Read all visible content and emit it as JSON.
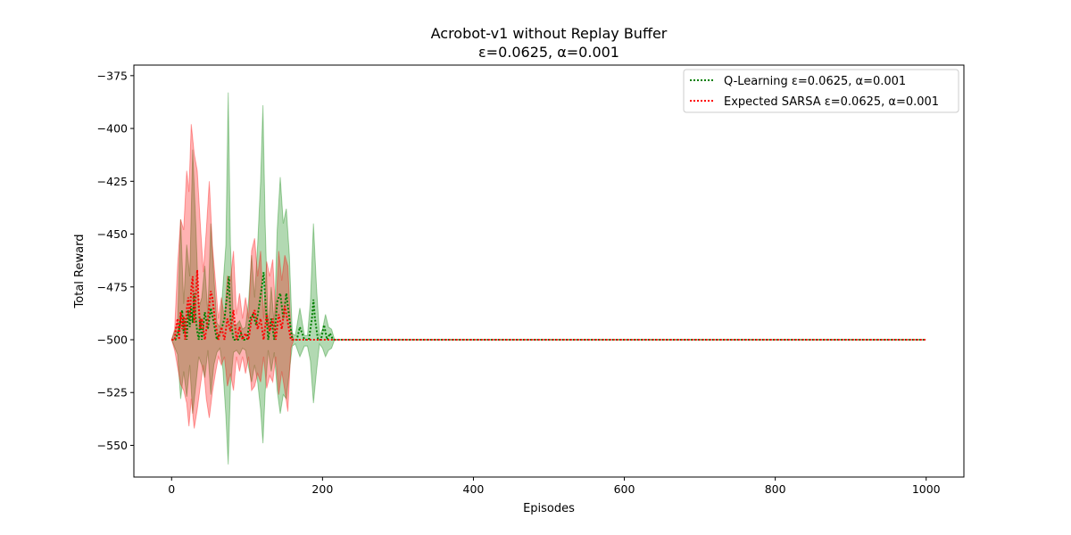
{
  "chart_data": {
    "type": "line",
    "title": "Acrobot-v1 without Replay Buffer",
    "subtitle": "ε=0.0625, α=0.001",
    "xlabel": "Episodes",
    "ylabel": "Total Reward",
    "xlim": [
      -50,
      1050
    ],
    "ylim": [
      -565,
      -370
    ],
    "xticks": [
      0,
      200,
      400,
      600,
      800,
      1000
    ],
    "yticks": [
      -375,
      -400,
      -425,
      -450,
      -475,
      -500,
      -525,
      -550
    ],
    "xtick_labels": [
      "0",
      "200",
      "400",
      "600",
      "800",
      "1000"
    ],
    "ytick_labels": [
      "−375",
      "−400",
      "−425",
      "−450",
      "−475",
      "−500",
      "−525",
      "−550"
    ],
    "grid": false,
    "legend_position": "top-right",
    "series": [
      {
        "name": "Q-Learning ε=0.0625, α=0.001",
        "color": "#008000",
        "style": "dotted",
        "mean_points": [
          [
            0,
            -500
          ],
          [
            5,
            -500
          ],
          [
            10,
            -495
          ],
          [
            12,
            -490
          ],
          [
            14,
            -486
          ],
          [
            16,
            -497
          ],
          [
            18,
            -490
          ],
          [
            20,
            -500
          ],
          [
            22,
            -486
          ],
          [
            24,
            -494
          ],
          [
            26,
            -484
          ],
          [
            28,
            -492
          ],
          [
            30,
            -478
          ],
          [
            32,
            -490
          ],
          [
            34,
            -496
          ],
          [
            36,
            -500
          ],
          [
            38,
            -490
          ],
          [
            40,
            -500
          ],
          [
            44,
            -487
          ],
          [
            48,
            -495
          ],
          [
            52,
            -485
          ],
          [
            56,
            -492
          ],
          [
            60,
            -500
          ],
          [
            66,
            -495
          ],
          [
            70,
            -490
          ],
          [
            74,
            -478
          ],
          [
            76,
            -470
          ],
          [
            78,
            -490
          ],
          [
            82,
            -500
          ],
          [
            88,
            -500
          ],
          [
            92,
            -497
          ],
          [
            96,
            -500
          ],
          [
            100,
            -500
          ],
          [
            104,
            -490
          ],
          [
            108,
            -488
          ],
          [
            112,
            -493
          ],
          [
            116,
            -484
          ],
          [
            120,
            -474
          ],
          [
            122,
            -468
          ],
          [
            124,
            -480
          ],
          [
            128,
            -500
          ],
          [
            132,
            -490
          ],
          [
            136,
            -500
          ],
          [
            140,
            -482
          ],
          [
            144,
            -478
          ],
          [
            148,
            -490
          ],
          [
            152,
            -478
          ],
          [
            156,
            -490
          ],
          [
            160,
            -500
          ],
          [
            166,
            -500
          ],
          [
            170,
            -494
          ],
          [
            176,
            -500
          ],
          [
            182,
            -500
          ],
          [
            186,
            -490
          ],
          [
            188,
            -481
          ],
          [
            190,
            -490
          ],
          [
            194,
            -500
          ],
          [
            198,
            -500
          ],
          [
            202,
            -493
          ],
          [
            206,
            -500
          ],
          [
            210,
            -497
          ],
          [
            214,
            -500
          ],
          [
            220,
            -500
          ],
          [
            300,
            -500
          ],
          [
            400,
            -500
          ],
          [
            500,
            -500
          ],
          [
            600,
            -500
          ],
          [
            700,
            -500
          ],
          [
            800,
            -500
          ],
          [
            900,
            -500
          ],
          [
            1000,
            -500
          ]
        ],
        "band_points": [
          [
            0,
            -500,
            -500
          ],
          [
            8,
            -507,
            -492
          ],
          [
            12,
            -528,
            -443
          ],
          [
            16,
            -515,
            -483
          ],
          [
            20,
            -527,
            -455
          ],
          [
            24,
            -512,
            -470
          ],
          [
            28,
            -535,
            -410
          ],
          [
            32,
            -522,
            -445
          ],
          [
            36,
            -508,
            -485
          ],
          [
            40,
            -512,
            -480
          ],
          [
            44,
            -518,
            -465
          ],
          [
            48,
            -505,
            -488
          ],
          [
            52,
            -526,
            -445
          ],
          [
            56,
            -512,
            -470
          ],
          [
            60,
            -506,
            -492
          ],
          [
            64,
            -504,
            -494
          ],
          [
            68,
            -514,
            -475
          ],
          [
            72,
            -536,
            -455
          ],
          [
            75,
            -559,
            -383
          ],
          [
            78,
            -522,
            -455
          ],
          [
            82,
            -506,
            -493
          ],
          [
            86,
            -505,
            -493
          ],
          [
            90,
            -507,
            -491
          ],
          [
            94,
            -504,
            -495
          ],
          [
            98,
            -505,
            -494
          ],
          [
            102,
            -513,
            -482
          ],
          [
            106,
            -520,
            -460
          ],
          [
            110,
            -512,
            -480
          ],
          [
            114,
            -520,
            -455
          ],
          [
            118,
            -533,
            -425
          ],
          [
            121,
            -549,
            -389
          ],
          [
            124,
            -525,
            -445
          ],
          [
            128,
            -505,
            -495
          ],
          [
            132,
            -515,
            -475
          ],
          [
            136,
            -506,
            -493
          ],
          [
            140,
            -524,
            -448
          ],
          [
            144,
            -535,
            -423
          ],
          [
            148,
            -526,
            -445
          ],
          [
            152,
            -528,
            -438
          ],
          [
            156,
            -515,
            -460
          ],
          [
            160,
            -503,
            -497
          ],
          [
            164,
            -502,
            -498
          ],
          [
            170,
            -508,
            -485
          ],
          [
            176,
            -503,
            -498
          ],
          [
            180,
            -503,
            -498
          ],
          [
            184,
            -510,
            -482
          ],
          [
            188,
            -530,
            -445
          ],
          [
            192,
            -515,
            -475
          ],
          [
            196,
            -502,
            -498
          ],
          [
            200,
            -504,
            -495
          ],
          [
            204,
            -508,
            -488
          ],
          [
            208,
            -505,
            -494
          ],
          [
            212,
            -504,
            -495
          ],
          [
            216,
            -500,
            -500
          ]
        ]
      },
      {
        "name": "Expected SARSA ε=0.0625, α=0.001",
        "color": "#ff0000",
        "style": "dotted",
        "mean_points": [
          [
            0,
            -500
          ],
          [
            4,
            -500
          ],
          [
            6,
            -494
          ],
          [
            8,
            -490
          ],
          [
            10,
            -500
          ],
          [
            12,
            -487
          ],
          [
            14,
            -495
          ],
          [
            16,
            -489
          ],
          [
            18,
            -500
          ],
          [
            20,
            -486
          ],
          [
            22,
            -480
          ],
          [
            24,
            -490
          ],
          [
            26,
            -476
          ],
          [
            28,
            -470
          ],
          [
            30,
            -492
          ],
          [
            32,
            -480
          ],
          [
            34,
            -467
          ],
          [
            36,
            -484
          ],
          [
            38,
            -495
          ],
          [
            40,
            -490
          ],
          [
            44,
            -500
          ],
          [
            48,
            -490
          ],
          [
            52,
            -477
          ],
          [
            54,
            -480
          ],
          [
            58,
            -492
          ],
          [
            62,
            -500
          ],
          [
            66,
            -494
          ],
          [
            70,
            -500
          ],
          [
            74,
            -490
          ],
          [
            78,
            -496
          ],
          [
            82,
            -486
          ],
          [
            86,
            -500
          ],
          [
            90,
            -494
          ],
          [
            94,
            -500
          ],
          [
            98,
            -497
          ],
          [
            102,
            -500
          ],
          [
            106,
            -490
          ],
          [
            110,
            -486
          ],
          [
            114,
            -495
          ],
          [
            118,
            -490
          ],
          [
            122,
            -500
          ],
          [
            126,
            -488
          ],
          [
            130,
            -496
          ],
          [
            134,
            -490
          ],
          [
            138,
            -500
          ],
          [
            142,
            -488
          ],
          [
            146,
            -495
          ],
          [
            150,
            -484
          ],
          [
            154,
            -492
          ],
          [
            158,
            -500
          ],
          [
            162,
            -500
          ],
          [
            170,
            -500
          ],
          [
            200,
            -500
          ],
          [
            300,
            -500
          ],
          [
            400,
            -500
          ],
          [
            500,
            -500
          ],
          [
            600,
            -500
          ],
          [
            700,
            -500
          ],
          [
            800,
            -500
          ],
          [
            900,
            -500
          ],
          [
            1000,
            -500
          ]
        ],
        "band_points": [
          [
            0,
            -500,
            -500
          ],
          [
            4,
            -505,
            -495
          ],
          [
            8,
            -513,
            -465
          ],
          [
            12,
            -521,
            -443
          ],
          [
            16,
            -524,
            -448
          ],
          [
            20,
            -530,
            -420
          ],
          [
            23,
            -541,
            -430
          ],
          [
            26,
            -528,
            -398
          ],
          [
            30,
            -542,
            -412
          ],
          [
            34,
            -533,
            -420
          ],
          [
            38,
            -522,
            -445
          ],
          [
            42,
            -512,
            -468
          ],
          [
            46,
            -528,
            -448
          ],
          [
            50,
            -537,
            -425
          ],
          [
            54,
            -525,
            -455
          ],
          [
            58,
            -516,
            -472
          ],
          [
            62,
            -508,
            -490
          ],
          [
            66,
            -512,
            -480
          ],
          [
            70,
            -508,
            -490
          ],
          [
            74,
            -522,
            -470
          ],
          [
            78,
            -516,
            -472
          ],
          [
            82,
            -524,
            -458
          ],
          [
            86,
            -508,
            -488
          ],
          [
            90,
            -515,
            -478
          ],
          [
            94,
            -508,
            -490
          ],
          [
            98,
            -516,
            -480
          ],
          [
            102,
            -508,
            -490
          ],
          [
            106,
            -524,
            -458
          ],
          [
            110,
            -522,
            -452
          ],
          [
            114,
            -516,
            -470
          ],
          [
            118,
            -520,
            -458
          ],
          [
            122,
            -508,
            -490
          ],
          [
            126,
            -523,
            -463
          ],
          [
            130,
            -517,
            -470
          ],
          [
            134,
            -520,
            -462
          ],
          [
            138,
            -508,
            -488
          ],
          [
            142,
            -526,
            -458
          ],
          [
            146,
            -515,
            -472
          ],
          [
            150,
            -524,
            -460
          ],
          [
            154,
            -534,
            -465
          ],
          [
            158,
            -504,
            -495
          ],
          [
            162,
            -500,
            -500
          ],
          [
            170,
            -500,
            -500
          ]
        ]
      }
    ]
  }
}
